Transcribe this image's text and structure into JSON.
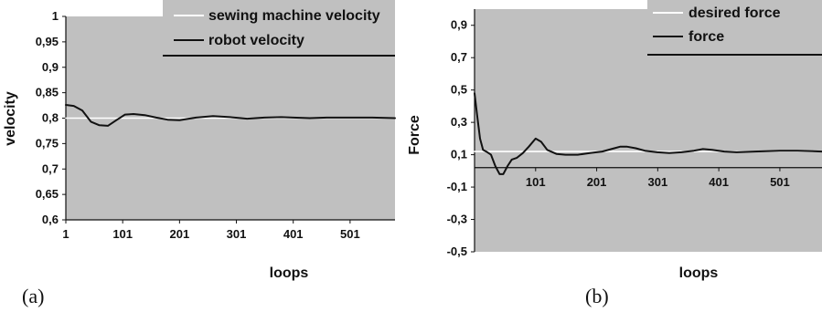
{
  "chart_data": [
    {
      "type": "line",
      "panel_label": "(a)",
      "xlabel": "loops",
      "ylabel": "velocity",
      "xlim": [
        1,
        580
      ],
      "ylim": [
        0.6,
        1.0
      ],
      "xticks": [
        1,
        101,
        201,
        301,
        401,
        501
      ],
      "xtick_labels": [
        "1",
        "101",
        "201",
        "301",
        "401",
        "501"
      ],
      "yticks": [
        0.6,
        0.65,
        0.7,
        0.75,
        0.8,
        0.85,
        0.9,
        0.95,
        1.0
      ],
      "ytick_labels": [
        "0,6",
        "0,65",
        "0,7",
        "0,75",
        "0,8",
        "0,85",
        "0,9",
        "0,95",
        "1"
      ],
      "grid": false,
      "legend_placement": "top-right",
      "colors": {
        "plot_background": "#c0c0c0",
        "reference_line": "#ffffff",
        "measured_line": "#111111"
      },
      "series": [
        {
          "name": "sewing machine velocity",
          "color": "#ffffff",
          "x": [
            1,
            580
          ],
          "y": [
            0.8,
            0.8
          ]
        },
        {
          "name": "robot velocity",
          "color": "#111111",
          "x": [
            1,
            15,
            30,
            45,
            60,
            75,
            90,
            105,
            120,
            140,
            160,
            180,
            201,
            230,
            260,
            290,
            320,
            350,
            380,
            401,
            430,
            460,
            501,
            540,
            580
          ],
          "y": [
            0.826,
            0.824,
            0.815,
            0.793,
            0.786,
            0.785,
            0.796,
            0.807,
            0.808,
            0.806,
            0.801,
            0.797,
            0.796,
            0.801,
            0.804,
            0.802,
            0.799,
            0.801,
            0.802,
            0.801,
            0.8,
            0.801,
            0.801,
            0.801,
            0.8
          ]
        }
      ]
    },
    {
      "type": "line",
      "panel_label": "(b)",
      "xlabel": "loops",
      "ylabel": "Force",
      "xlim": [
        1,
        570
      ],
      "ylim": [
        -0.5,
        1.0
      ],
      "xticks": [
        101,
        201,
        301,
        401,
        501
      ],
      "xtick_labels": [
        "101",
        "201",
        "301",
        "401",
        "501"
      ],
      "yticks": [
        -0.5,
        -0.3,
        -0.1,
        0.1,
        0.3,
        0.5,
        0.7,
        0.9
      ],
      "ytick_labels": [
        "-0,5",
        "-0,3",
        "-0,1",
        "0,1",
        "0,3",
        "0,5",
        "0,7",
        "0,9"
      ],
      "grid": false,
      "legend_placement": "top-right",
      "colors": {
        "plot_background": "#c0c0c0",
        "reference_line": "#ffffff",
        "measured_line": "#111111"
      },
      "series": [
        {
          "name": "desired force",
          "color": "#ffffff",
          "x": [
            1,
            570
          ],
          "y": [
            0.12,
            0.12
          ]
        },
        {
          "name": "force",
          "color": "#111111",
          "x": [
            1,
            5,
            10,
            15,
            20,
            28,
            35,
            42,
            48,
            55,
            62,
            70,
            80,
            90,
            101,
            110,
            120,
            135,
            150,
            170,
            190,
            210,
            230,
            240,
            250,
            265,
            280,
            300,
            320,
            340,
            360,
            375,
            390,
            410,
            430,
            460,
            501,
            530,
            570
          ],
          "y": [
            0.48,
            0.35,
            0.2,
            0.13,
            0.12,
            0.1,
            0.03,
            -0.02,
            -0.02,
            0.03,
            0.07,
            0.08,
            0.11,
            0.15,
            0.2,
            0.18,
            0.13,
            0.105,
            0.1,
            0.1,
            0.11,
            0.12,
            0.14,
            0.15,
            0.15,
            0.14,
            0.125,
            0.115,
            0.11,
            0.115,
            0.125,
            0.135,
            0.13,
            0.12,
            0.115,
            0.12,
            0.125,
            0.125,
            0.12
          ]
        }
      ]
    }
  ]
}
